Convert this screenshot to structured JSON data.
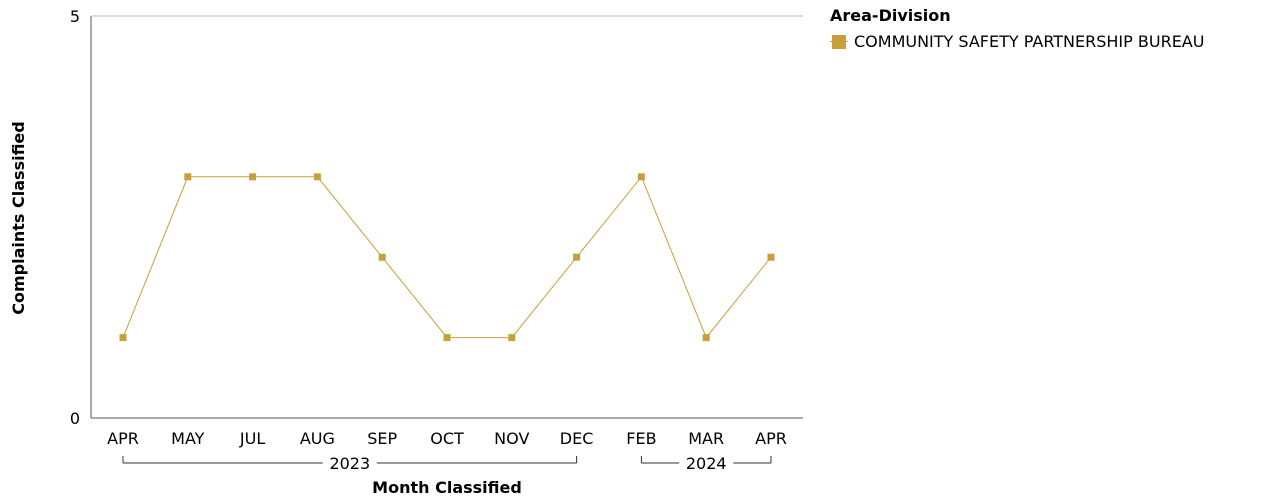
{
  "chart_data": {
    "type": "line",
    "categories": [
      "APR",
      "MAY",
      "JUL",
      "AUG",
      "SEP",
      "OCT",
      "NOV",
      "DEC",
      "FEB",
      "MAR",
      "APR"
    ],
    "groups": [
      {
        "label": "2023",
        "start": 0,
        "end": 7
      },
      {
        "label": "2024",
        "start": 8,
        "end": 10
      }
    ],
    "series": [
      {
        "name": "COMMUNITY SAFETY PARTNERSHIP BUREAU",
        "color": "#C8A03A",
        "values": [
          1,
          3,
          3,
          3,
          2,
          1,
          1,
          2,
          3,
          1,
          2
        ]
      }
    ],
    "xlabel": "Month Classified",
    "ylabel": "Complaints Classified",
    "ylim": [
      0,
      5
    ],
    "yticks": [
      0,
      5
    ],
    "grid": false,
    "legend": {
      "title": "Area-Division",
      "position": "right"
    }
  }
}
